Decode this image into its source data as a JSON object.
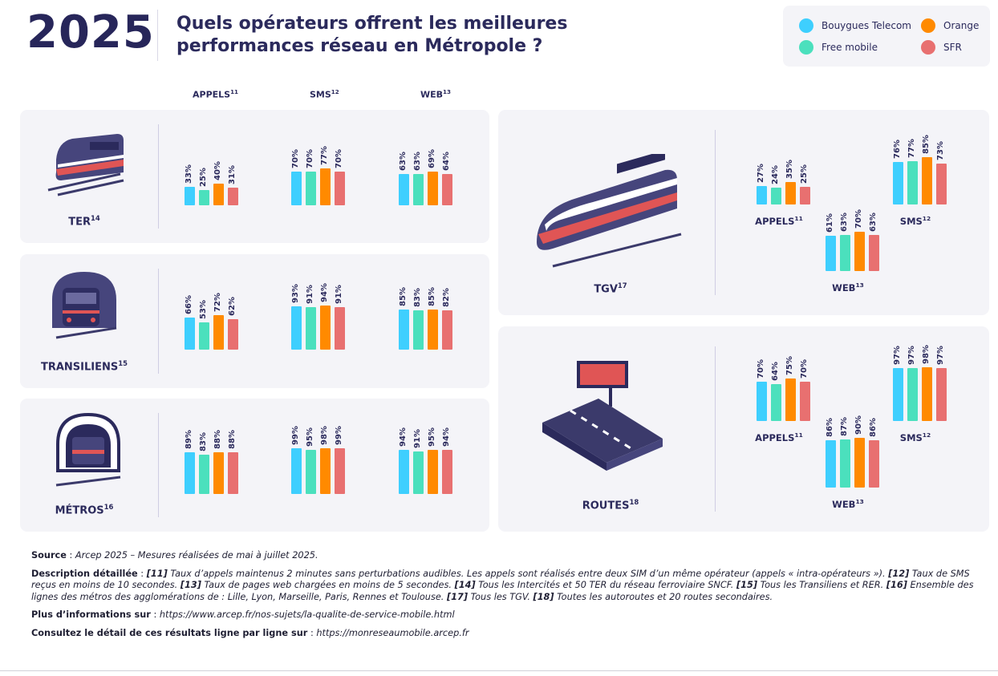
{
  "header": {
    "year": "2025",
    "title": "Quels opérateurs offrent les meilleures performances réseau en Métropole ?"
  },
  "legend": [
    {
      "name": "Bouygues Telecom",
      "color": "#3ecffe"
    },
    {
      "name": "Orange",
      "color": "#ff8a00"
    },
    {
      "name": "Free mobile",
      "color": "#4be0bd"
    },
    {
      "name": "SFR",
      "color": "#e87070"
    }
  ],
  "column_headers": {
    "appels": "APPELS",
    "appels_ref": "11",
    "sms": "SMS",
    "sms_ref": "12",
    "web": "WEB",
    "web_ref": "13"
  },
  "chart_data": {
    "type": "bar",
    "series_names": [
      "Bouygues Telecom",
      "Free mobile",
      "Orange",
      "SFR"
    ],
    "unit": "%",
    "panels": [
      {
        "name": "TER",
        "ref": "14",
        "appels": [
          33,
          25,
          40,
          31
        ],
        "sms": [
          70,
          70,
          77,
          70
        ],
        "web": [
          63,
          63,
          69,
          64
        ]
      },
      {
        "name": "TRANSILIENS",
        "ref": "15",
        "appels": [
          66,
          53,
          72,
          62
        ],
        "sms": [
          93,
          91,
          94,
          91
        ],
        "web": [
          85,
          83,
          85,
          82
        ]
      },
      {
        "name": "MÉTROS",
        "ref": "16",
        "appels": [
          89,
          83,
          88,
          88
        ],
        "sms": [
          99,
          95,
          98,
          99
        ],
        "web": [
          94,
          91,
          95,
          94
        ]
      },
      {
        "name": "TGV",
        "ref": "17",
        "appels": [
          27,
          24,
          35,
          25
        ],
        "sms": [
          76,
          77,
          85,
          73
        ],
        "web": [
          61,
          63,
          70,
          63
        ]
      },
      {
        "name": "ROUTES",
        "ref": "18",
        "appels": [
          70,
          64,
          75,
          70
        ],
        "sms": [
          97,
          97,
          98,
          97
        ],
        "web": [
          86,
          87,
          90,
          86
        ]
      }
    ]
  },
  "notes": {
    "source_label": "Source",
    "source_text": "Arcep 2025 – Mesures réalisées de mai à juillet 2025.",
    "desc_label": "Description détaillée",
    "desc": [
      {
        "ref": "[11]",
        "text": "Taux d’appels maintenus 2 minutes sans perturbations audibles. Les appels sont réalisés entre deux SIM d’un même opérateur (appels « intra-opérateurs »)."
      },
      {
        "ref": "[12]",
        "text": "Taux de SMS reçus en moins de 10 secondes."
      },
      {
        "ref": "[13]",
        "text": "Taux de pages web chargées en moins de 5 secondes."
      },
      {
        "ref": "[14]",
        "text": "Tous les Intercités et 50 TER du réseau ferroviaire SNCF."
      },
      {
        "ref": "[15]",
        "text": "Tous les Transiliens et RER."
      },
      {
        "ref": "[16]",
        "text": "Ensemble des lignes des métros des agglomérations de : Lille, Lyon, Marseille, Paris, Rennes et Toulouse."
      },
      {
        "ref": "[17]",
        "text": "Tous les TGV."
      },
      {
        "ref": "[18]",
        "text": "Toutes les autoroutes et 20 routes secondaires."
      }
    ],
    "more_label": "Plus d’informations sur",
    "more_url": "https://www.arcep.fr/nos-sujets/la-qualite-de-service-mobile.html",
    "detail_label": "Consultez le détail de ces résultats ligne par ligne sur",
    "detail_url": "https://monreseaumobile.arcep.fr"
  }
}
